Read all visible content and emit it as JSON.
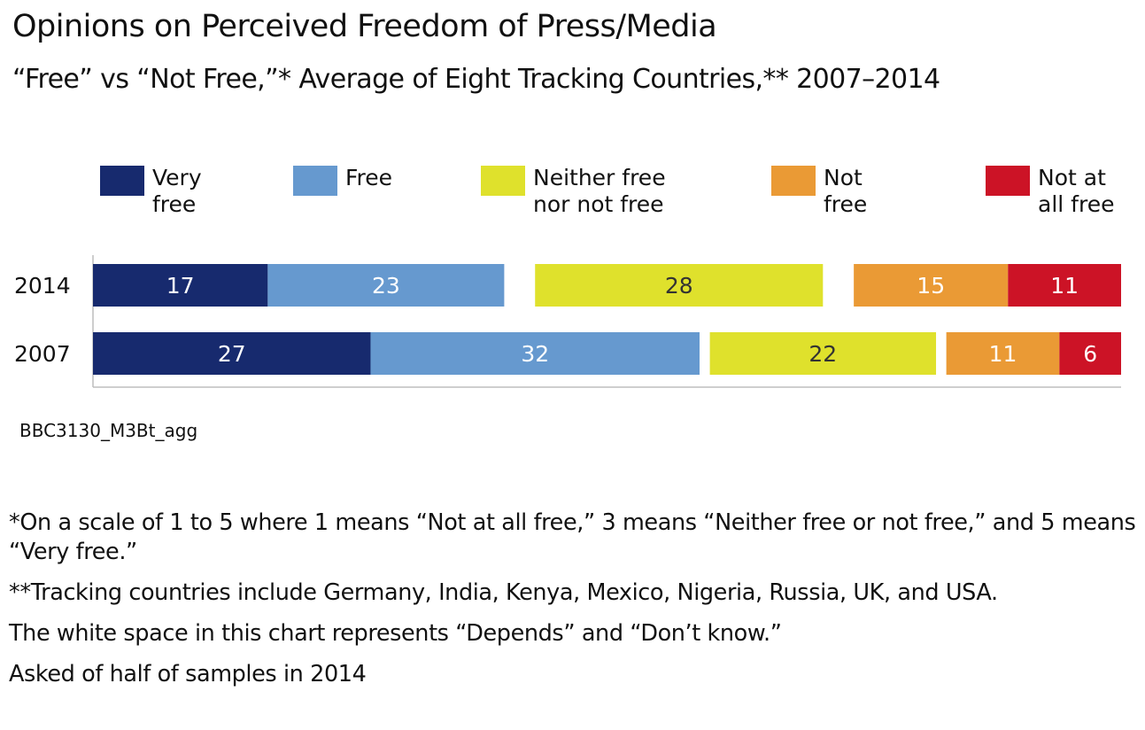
{
  "chart_data": {
    "type": "bar",
    "orientation": "horizontal",
    "stacked": true,
    "title": "Opinions on Perceived Freedom of Press/Media",
    "subtitle": "“Free” vs “Not Free,”* Average of Eight Tracking Countries,** 2007–2014",
    "categories": [
      "2014",
      "2007"
    ],
    "series": [
      {
        "name": "Very free",
        "legend_lines": [
          "Very",
          "free"
        ],
        "color": "#172a6e",
        "label_color": "#ffffff",
        "values": [
          17,
          27
        ]
      },
      {
        "name": "Free",
        "legend_lines": [
          "Free"
        ],
        "color": "#6699cf",
        "label_color": "#ffffff",
        "values": [
          23,
          32
        ]
      },
      {
        "name": "Depends / Don't know",
        "legend_lines": [],
        "color": "#ffffff",
        "label_color": "#ffffff",
        "values": [
          3,
          1
        ],
        "hidden": true
      },
      {
        "name": "Neither free nor not free",
        "legend_lines": [
          "Neither free",
          "nor not free"
        ],
        "color": "#dfe12c",
        "label_color": "#333333",
        "values": [
          28,
          22
        ]
      },
      {
        "name": "Depends / Don't know",
        "legend_lines": [],
        "color": "#ffffff",
        "label_color": "#ffffff",
        "values": [
          3,
          1
        ],
        "hidden": true
      },
      {
        "name": "Not free",
        "legend_lines": [
          "Not",
          "free"
        ],
        "color": "#ea9a35",
        "label_color": "#ffffff",
        "values": [
          15,
          11
        ]
      },
      {
        "name": "Not at all free",
        "legend_lines": [
          "Not at",
          "all free"
        ],
        "color": "#cc1326",
        "label_color": "#ffffff",
        "values": [
          11,
          6
        ]
      }
    ],
    "xlim": [
      0,
      100
    ],
    "grid": false,
    "legend_position": "top"
  },
  "source_code": "BBC3130_M3Bt_agg",
  "notes": [
    "*On a scale of 1 to 5 where 1 means “Not at all free,” 3 means “Neither free or not free,” and 5 means “Very free.”",
    "**Tracking countries include Germany, India, Kenya, Mexico, Nigeria, Russia, UK, and USA.",
    "The white space in this chart represents “Depends” and “Don’t know.”",
    "Asked of half of samples in 2014"
  ]
}
